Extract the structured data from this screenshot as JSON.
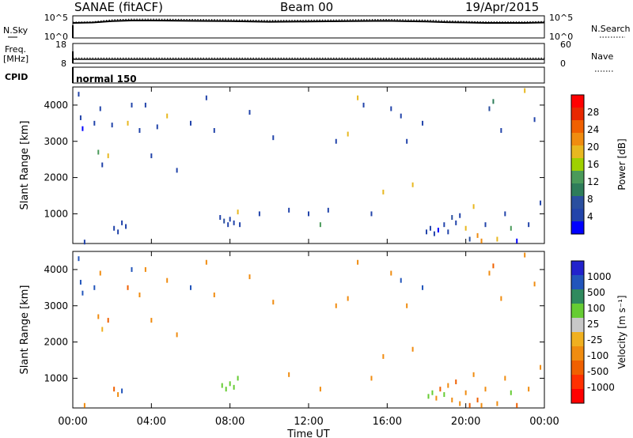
{
  "header": {
    "station": "SANAE (fitACF)",
    "beam": "Beam 00",
    "date": "19/Apr/2015"
  },
  "strip_labels": {
    "nsky": "N.Sky",
    "nsearch": "N.Search",
    "freq": "Freq.",
    "mhz": "[MHz]",
    "nave": "Nave",
    "cpid": "CPID",
    "cpid_value": "normal 150"
  },
  "colors": {
    "power": [
      "#0000ff",
      "#2244aa",
      "#2a4f9f",
      "#2e7d5a",
      "#4a9a5a",
      "#9fd000",
      "#e8b820",
      "#f08c10",
      "#f06000",
      "#e82800",
      "#ff0000"
    ],
    "velocity": [
      "#2222cc",
      "#2255bb",
      "#2f8a5e",
      "#66cc33",
      "#c8c8c8",
      "#f0b020",
      "#f08c10",
      "#f06000",
      "#ff3000",
      "#ff0000"
    ]
  },
  "chart_data": [
    {
      "type": "line",
      "title": "N.Sky / N.Search",
      "x_range": [
        "00:00",
        "24:00"
      ],
      "y_left_ticks": [
        "10^5",
        "10^0"
      ],
      "y_right_ticks": [
        "10^5",
        "10^0"
      ],
      "series": [
        {
          "name": "N.Sky",
          "style": "solid",
          "x": [
            0,
            1,
            1.5,
            2,
            3,
            4,
            6,
            8,
            10,
            12,
            14,
            16,
            18,
            19,
            20,
            21,
            22,
            23,
            24
          ],
          "y": [
            3.9,
            4.0,
            4.2,
            4.4,
            4.6,
            4.6,
            4.5,
            4.4,
            4.2,
            4.3,
            4.4,
            4.5,
            4.3,
            4.1,
            4.0,
            3.9,
            3.9,
            3.9,
            4.0
          ]
        },
        {
          "name": "N.Search",
          "style": "dotted",
          "x": [
            0,
            1,
            1.5,
            2,
            3,
            4,
            6,
            8,
            10,
            12,
            14,
            16,
            18,
            19,
            20,
            21,
            22,
            23,
            24
          ],
          "y": [
            4.1,
            4.2,
            4.5,
            4.8,
            5.0,
            5.0,
            4.9,
            4.8,
            4.6,
            4.7,
            4.8,
            4.9,
            4.7,
            4.5,
            4.3,
            4.2,
            4.2,
            4.2,
            4.3
          ]
        }
      ]
    },
    {
      "type": "line",
      "title": "Freq. / Nave",
      "x_range": [
        "00:00",
        "24:00"
      ],
      "y_left_ticks": [
        "18",
        "8"
      ],
      "y_right_ticks": [
        "60",
        "0"
      ],
      "series": [
        {
          "name": "Freq.",
          "style": "solid",
          "x": [
            0,
            24
          ],
          "y": [
            10,
            10
          ]
        },
        {
          "name": "Nave",
          "style": "dotted",
          "x": [
            0,
            24
          ],
          "y": [
            16,
            16
          ]
        }
      ]
    },
    {
      "type": "scatter",
      "xlabel": "",
      "ylabel": "Slant Range [km]",
      "x_ticks": [
        "00:00",
        "04:00",
        "08:00",
        "12:00",
        "16:00",
        "20:00",
        "00:00"
      ],
      "y_ticks": [
        1000,
        2000,
        3000,
        4000
      ],
      "ylim": [
        180,
        4500
      ],
      "colorbar": {
        "label": "Power [dB]",
        "ticks": [
          4,
          8,
          12,
          16,
          20,
          24,
          28
        ]
      },
      "points": [
        {
          "t": 0.3,
          "r": 4300,
          "v": 6
        },
        {
          "t": 0.4,
          "r": 3650,
          "v": 6
        },
        {
          "t": 0.5,
          "r": 3350,
          "v": 4
        },
        {
          "t": 0.6,
          "r": 220,
          "v": 6
        },
        {
          "t": 1.1,
          "r": 3500,
          "v": 6
        },
        {
          "t": 1.3,
          "r": 2700,
          "v": 16
        },
        {
          "t": 1.4,
          "r": 3900,
          "v": 6
        },
        {
          "t": 1.5,
          "r": 2350,
          "v": 6
        },
        {
          "t": 1.8,
          "r": 2600,
          "v": 20
        },
        {
          "t": 2.0,
          "r": 3450,
          "v": 6
        },
        {
          "t": 2.1,
          "r": 600,
          "v": 6
        },
        {
          "t": 2.3,
          "r": 500,
          "v": 6
        },
        {
          "t": 2.5,
          "r": 750,
          "v": 6
        },
        {
          "t": 2.7,
          "r": 650,
          "v": 6
        },
        {
          "t": 2.8,
          "r": 3500,
          "v": 20
        },
        {
          "t": 3.0,
          "r": 4000,
          "v": 6
        },
        {
          "t": 3.4,
          "r": 3300,
          "v": 6
        },
        {
          "t": 3.7,
          "r": 4000,
          "v": 6
        },
        {
          "t": 4.0,
          "r": 2600,
          "v": 6
        },
        {
          "t": 4.3,
          "r": 3400,
          "v": 6
        },
        {
          "t": 4.8,
          "r": 3700,
          "v": 20
        },
        {
          "t": 5.3,
          "r": 2200,
          "v": 6
        },
        {
          "t": 6.0,
          "r": 3500,
          "v": 6
        },
        {
          "t": 6.8,
          "r": 4200,
          "v": 6
        },
        {
          "t": 7.2,
          "r": 3300,
          "v": 6
        },
        {
          "t": 7.5,
          "r": 900,
          "v": 6
        },
        {
          "t": 7.7,
          "r": 800,
          "v": 8
        },
        {
          "t": 7.9,
          "r": 700,
          "v": 6
        },
        {
          "t": 8.0,
          "r": 850,
          "v": 6
        },
        {
          "t": 8.2,
          "r": 750,
          "v": 6
        },
        {
          "t": 8.4,
          "r": 1050,
          "v": 20
        },
        {
          "t": 8.5,
          "r": 700,
          "v": 6
        },
        {
          "t": 9.0,
          "r": 3800,
          "v": 6
        },
        {
          "t": 9.5,
          "r": 1000,
          "v": 6
        },
        {
          "t": 10.2,
          "r": 3100,
          "v": 6
        },
        {
          "t": 11.0,
          "r": 1100,
          "v": 6
        },
        {
          "t": 12.0,
          "r": 1000,
          "v": 6
        },
        {
          "t": 12.6,
          "r": 700,
          "v": 16
        },
        {
          "t": 13.0,
          "r": 1100,
          "v": 6
        },
        {
          "t": 13.4,
          "r": 3000,
          "v": 6
        },
        {
          "t": 14.0,
          "r": 3200,
          "v": 20
        },
        {
          "t": 14.5,
          "r": 4200,
          "v": 20
        },
        {
          "t": 14.8,
          "r": 4000,
          "v": 6
        },
        {
          "t": 15.2,
          "r": 1000,
          "v": 6
        },
        {
          "t": 15.8,
          "r": 1600,
          "v": 20
        },
        {
          "t": 16.2,
          "r": 3900,
          "v": 6
        },
        {
          "t": 16.7,
          "r": 3700,
          "v": 6
        },
        {
          "t": 17.0,
          "r": 3000,
          "v": 6
        },
        {
          "t": 17.3,
          "r": 1800,
          "v": 20
        },
        {
          "t": 17.8,
          "r": 3500,
          "v": 6
        },
        {
          "t": 18.0,
          "r": 500,
          "v": 6
        },
        {
          "t": 18.2,
          "r": 600,
          "v": 6
        },
        {
          "t": 18.4,
          "r": 450,
          "v": 6
        },
        {
          "t": 18.6,
          "r": 550,
          "v": 4
        },
        {
          "t": 18.9,
          "r": 700,
          "v": 6
        },
        {
          "t": 19.1,
          "r": 500,
          "v": 6
        },
        {
          "t": 19.3,
          "r": 900,
          "v": 8
        },
        {
          "t": 19.5,
          "r": 750,
          "v": 6
        },
        {
          "t": 19.7,
          "r": 950,
          "v": 6
        },
        {
          "t": 20.0,
          "r": 600,
          "v": 20
        },
        {
          "t": 20.2,
          "r": 300,
          "v": 8
        },
        {
          "t": 20.4,
          "r": 1200,
          "v": 20
        },
        {
          "t": 20.6,
          "r": 400,
          "v": 24
        },
        {
          "t": 20.8,
          "r": 250,
          "v": 24
        },
        {
          "t": 21.0,
          "r": 700,
          "v": 6
        },
        {
          "t": 21.2,
          "r": 3900,
          "v": 8
        },
        {
          "t": 21.4,
          "r": 4100,
          "v": 12
        },
        {
          "t": 21.6,
          "r": 300,
          "v": 20
        },
        {
          "t": 21.8,
          "r": 3300,
          "v": 6
        },
        {
          "t": 22.0,
          "r": 1000,
          "v": 6
        },
        {
          "t": 22.3,
          "r": 600,
          "v": 16
        },
        {
          "t": 22.6,
          "r": 250,
          "v": 4
        },
        {
          "t": 23.0,
          "r": 4400,
          "v": 20
        },
        {
          "t": 23.2,
          "r": 700,
          "v": 6
        },
        {
          "t": 23.5,
          "r": 3600,
          "v": 6
        },
        {
          "t": 23.8,
          "r": 1300,
          "v": 6
        }
      ]
    },
    {
      "type": "scatter",
      "xlabel": "Time UT",
      "ylabel": "Slant Range [km]",
      "x_ticks": [
        "00:00",
        "04:00",
        "08:00",
        "12:00",
        "16:00",
        "20:00",
        "00:00"
      ],
      "y_ticks": [
        1000,
        2000,
        3000,
        4000
      ],
      "ylim": [
        180,
        4500
      ],
      "colorbar": {
        "label": "Velocity [m s⁻¹]",
        "ticks": [
          1000,
          500,
          100,
          25,
          -25,
          -100,
          -500,
          -1000
        ]
      },
      "points": [
        {
          "t": 0.3,
          "r": 4300,
          "v": 1
        },
        {
          "t": 0.4,
          "r": 3650,
          "v": 1
        },
        {
          "t": 0.5,
          "r": 3350,
          "v": 1
        },
        {
          "t": 0.6,
          "r": 250,
          "v": 6
        },
        {
          "t": 1.1,
          "r": 3500,
          "v": 1
        },
        {
          "t": 1.3,
          "r": 2700,
          "v": 6
        },
        {
          "t": 1.4,
          "r": 3900,
          "v": 6
        },
        {
          "t": 1.5,
          "r": 2350,
          "v": 5
        },
        {
          "t": 1.8,
          "r": 2600,
          "v": 7
        },
        {
          "t": 2.1,
          "r": 700,
          "v": 7
        },
        {
          "t": 2.3,
          "r": 550,
          "v": 6
        },
        {
          "t": 2.5,
          "r": 650,
          "v": 1
        },
        {
          "t": 2.8,
          "r": 3500,
          "v": 7
        },
        {
          "t": 3.0,
          "r": 4000,
          "v": 1
        },
        {
          "t": 3.4,
          "r": 3300,
          "v": 6
        },
        {
          "t": 3.7,
          "r": 4000,
          "v": 6
        },
        {
          "t": 4.0,
          "r": 2600,
          "v": 6
        },
        {
          "t": 4.8,
          "r": 3700,
          "v": 6
        },
        {
          "t": 5.3,
          "r": 2200,
          "v": 6
        },
        {
          "t": 6.0,
          "r": 3500,
          "v": 1
        },
        {
          "t": 6.8,
          "r": 4200,
          "v": 6
        },
        {
          "t": 7.2,
          "r": 3300,
          "v": 6
        },
        {
          "t": 7.6,
          "r": 800,
          "v": 3
        },
        {
          "t": 7.8,
          "r": 700,
          "v": 3
        },
        {
          "t": 8.0,
          "r": 850,
          "v": 3
        },
        {
          "t": 8.2,
          "r": 750,
          "v": 3
        },
        {
          "t": 8.4,
          "r": 1000,
          "v": 3
        },
        {
          "t": 9.0,
          "r": 3800,
          "v": 6
        },
        {
          "t": 10.2,
          "r": 3100,
          "v": 6
        },
        {
          "t": 11.0,
          "r": 1100,
          "v": 6
        },
        {
          "t": 12.6,
          "r": 700,
          "v": 6
        },
        {
          "t": 13.4,
          "r": 3000,
          "v": 6
        },
        {
          "t": 14.0,
          "r": 3200,
          "v": 6
        },
        {
          "t": 14.5,
          "r": 4200,
          "v": 6
        },
        {
          "t": 15.2,
          "r": 1000,
          "v": 6
        },
        {
          "t": 15.8,
          "r": 1600,
          "v": 6
        },
        {
          "t": 16.2,
          "r": 3900,
          "v": 6
        },
        {
          "t": 16.7,
          "r": 3700,
          "v": 1
        },
        {
          "t": 17.0,
          "r": 3000,
          "v": 6
        },
        {
          "t": 17.3,
          "r": 1800,
          "v": 6
        },
        {
          "t": 17.8,
          "r": 3500,
          "v": 1
        },
        {
          "t": 18.1,
          "r": 500,
          "v": 3
        },
        {
          "t": 18.3,
          "r": 600,
          "v": 3
        },
        {
          "t": 18.5,
          "r": 450,
          "v": 6
        },
        {
          "t": 18.7,
          "r": 700,
          "v": 7
        },
        {
          "t": 18.9,
          "r": 550,
          "v": 3
        },
        {
          "t": 19.1,
          "r": 800,
          "v": 6
        },
        {
          "t": 19.3,
          "r": 400,
          "v": 6
        },
        {
          "t": 19.5,
          "r": 900,
          "v": 7
        },
        {
          "t": 19.7,
          "r": 300,
          "v": 6
        },
        {
          "t": 20.0,
          "r": 600,
          "v": 6
        },
        {
          "t": 20.2,
          "r": 250,
          "v": 7
        },
        {
          "t": 20.4,
          "r": 1100,
          "v": 6
        },
        {
          "t": 20.6,
          "r": 400,
          "v": 7
        },
        {
          "t": 20.8,
          "r": 250,
          "v": 6
        },
        {
          "t": 21.0,
          "r": 700,
          "v": 6
        },
        {
          "t": 21.2,
          "r": 3900,
          "v": 6
        },
        {
          "t": 21.4,
          "r": 4100,
          "v": 7
        },
        {
          "t": 21.6,
          "r": 300,
          "v": 6
        },
        {
          "t": 21.8,
          "r": 3200,
          "v": 6
        },
        {
          "t": 22.0,
          "r": 1000,
          "v": 6
        },
        {
          "t": 22.3,
          "r": 600,
          "v": 3
        },
        {
          "t": 22.6,
          "r": 250,
          "v": 7
        },
        {
          "t": 23.0,
          "r": 4400,
          "v": 6
        },
        {
          "t": 23.2,
          "r": 700,
          "v": 6
        },
        {
          "t": 23.5,
          "r": 3600,
          "v": 6
        },
        {
          "t": 23.8,
          "r": 1300,
          "v": 6
        }
      ]
    }
  ]
}
